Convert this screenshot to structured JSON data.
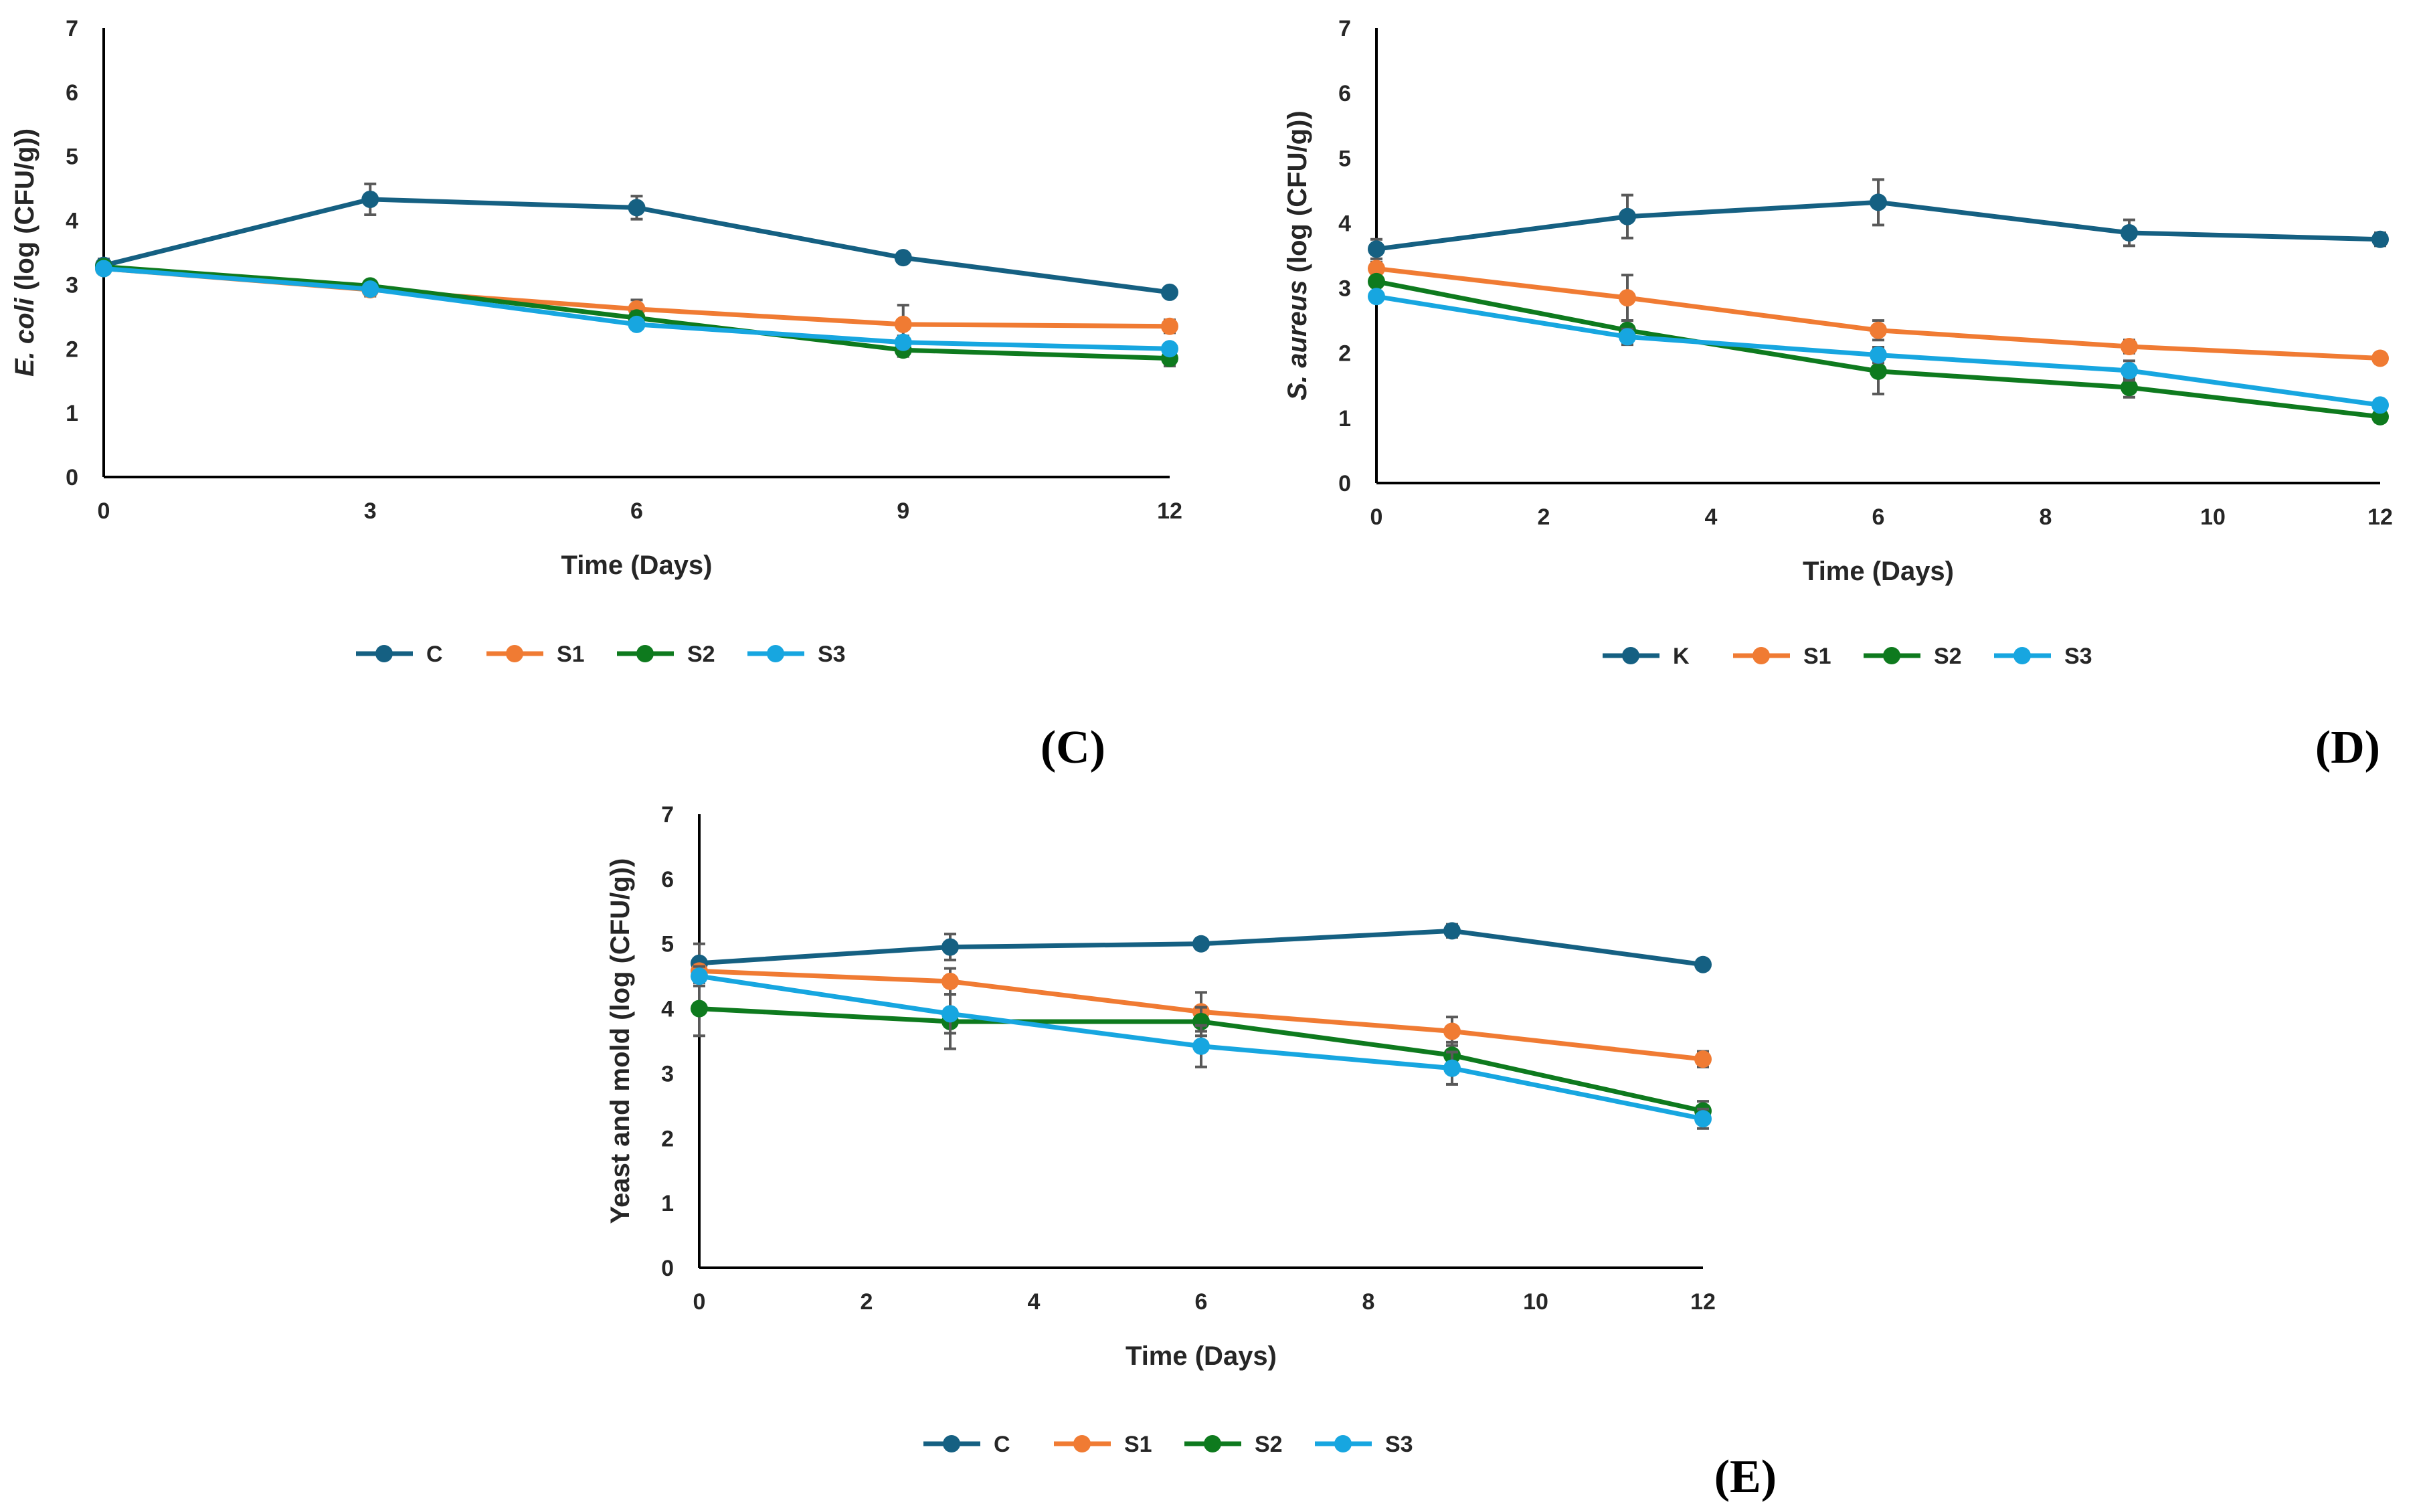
{
  "colors": {
    "C": "#156082",
    "K": "#156082",
    "S1": "#F07B33",
    "S2": "#0E7A1E",
    "S3": "#17A6E0",
    "error_bar": "#595959",
    "axis": "#000000"
  },
  "chart_data": [
    {
      "id": "C",
      "panel_label": "(C)",
      "type": "line",
      "title": "",
      "xlabel": "Time (Days)",
      "ylabel_italic": "E. coli",
      "ylabel_rest": " (log (CFU/g))",
      "xlim": [
        0,
        12
      ],
      "ylim": [
        0,
        7
      ],
      "xticks": [
        "0",
        "3",
        "6",
        "9",
        "12"
      ],
      "yticks": [
        "0",
        "1",
        "2",
        "3",
        "4",
        "5",
        "6",
        "7"
      ],
      "x": [
        0,
        3,
        6,
        9,
        12
      ],
      "legend_position": "bottom",
      "series": [
        {
          "name": "C",
          "values": [
            3.3,
            4.33,
            4.2,
            3.42,
            2.88
          ],
          "errors": [
            0.1,
            0.24,
            0.18,
            0.05,
            0.05
          ]
        },
        {
          "name": "S1",
          "values": [
            3.25,
            2.92,
            2.62,
            2.38,
            2.35
          ],
          "errors": [
            0.08,
            0.1,
            0.14,
            0.3,
            0.1
          ]
        },
        {
          "name": "S2",
          "values": [
            3.28,
            2.98,
            2.48,
            1.98,
            1.85
          ],
          "errors": [
            0.05,
            0.08,
            0.1,
            0.1,
            0.12
          ]
        },
        {
          "name": "S3",
          "values": [
            3.25,
            2.93,
            2.38,
            2.1,
            2.0
          ],
          "errors": [
            0.05,
            0.05,
            0.06,
            0.1,
            0.08
          ]
        }
      ]
    },
    {
      "id": "D",
      "panel_label": "(D)",
      "type": "line",
      "title": "",
      "xlabel": "Time (Days)",
      "ylabel_italic": "S. aureus",
      "ylabel_rest": " (log (CFU/g))",
      "xlim": [
        0,
        12
      ],
      "ylim": [
        0,
        7
      ],
      "xticks": [
        "0",
        "2",
        "4",
        "6",
        "8",
        "10",
        "12"
      ],
      "yticks": [
        "0",
        "1",
        "2",
        "3",
        "4",
        "5",
        "6",
        "7"
      ],
      "x": [
        0,
        3,
        6,
        9,
        12
      ],
      "legend_position": "bottom",
      "series": [
        {
          "name": "K",
          "values": [
            3.6,
            4.1,
            4.32,
            3.85,
            3.75
          ],
          "errors": [
            0.15,
            0.33,
            0.35,
            0.2,
            0.1
          ]
        },
        {
          "name": "S1",
          "values": [
            3.3,
            2.85,
            2.35,
            2.1,
            1.92
          ],
          "errors": [
            0.1,
            0.35,
            0.15,
            0.1,
            0.08
          ]
        },
        {
          "name": "S2",
          "values": [
            3.1,
            2.35,
            1.72,
            1.47,
            1.02
          ],
          "errors": [
            0.08,
            0.15,
            0.35,
            0.15,
            0.08
          ]
        },
        {
          "name": "S3",
          "values": [
            2.87,
            2.25,
            1.97,
            1.73,
            1.2
          ],
          "errors": [
            0.05,
            0.12,
            0.12,
            0.15,
            0.05
          ]
        }
      ]
    },
    {
      "id": "E",
      "panel_label": "(E)",
      "type": "line",
      "title": "",
      "xlabel": "Time (Days)",
      "ylabel_italic": "",
      "ylabel_rest": "Yeast and mold (log (CFU/g))",
      "xlim": [
        0,
        12
      ],
      "ylim": [
        0,
        7
      ],
      "xticks": [
        "0",
        "2",
        "4",
        "6",
        "8",
        "10",
        "12"
      ],
      "yticks": [
        "0",
        "1",
        "2",
        "3",
        "4",
        "5",
        "6",
        "7"
      ],
      "x": [
        0,
        3,
        6,
        9,
        12
      ],
      "legend_position": "bottom",
      "series": [
        {
          "name": "C",
          "values": [
            4.7,
            4.95,
            5.0,
            5.2,
            4.68
          ],
          "errors": [
            0.3,
            0.2,
            0.08,
            0.1,
            0.05
          ]
        },
        {
          "name": "S1",
          "values": [
            4.58,
            4.42,
            3.95,
            3.65,
            3.22
          ],
          "errors": [
            0.1,
            0.2,
            0.3,
            0.22,
            0.12
          ]
        },
        {
          "name": "S2",
          "values": [
            4.0,
            3.8,
            3.8,
            3.28,
            2.42
          ],
          "errors": [
            0.42,
            0.42,
            0.22,
            0.2,
            0.15
          ]
        },
        {
          "name": "S3",
          "values": [
            4.5,
            3.92,
            3.42,
            3.08,
            2.3
          ],
          "errors": [
            0.15,
            0.3,
            0.32,
            0.25,
            0.15
          ]
        }
      ]
    }
  ]
}
